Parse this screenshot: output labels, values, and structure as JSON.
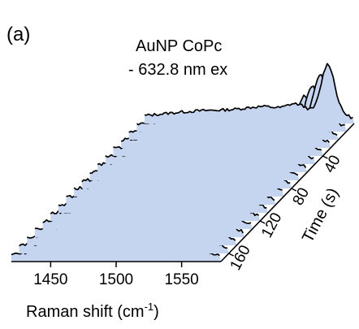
{
  "chart_data": {
    "type": "area",
    "panel_label": "(a)",
    "title_line1": "AuNP  CoPc",
    "title_line2": "- 632.8 nm ex",
    "xlabel": "Raman shift (cm",
    "xlabel_sup": "-1",
    "xlabel_close": ")",
    "ylabel": "Time (s)",
    "xlim": [
      1420,
      1580
    ],
    "xticks": [
      1450,
      1500,
      1550
    ],
    "xtick_labels": [
      "1450",
      "1500",
      "1550"
    ],
    "time_ticks": [
      40,
      80,
      120,
      160
    ],
    "time_tick_labels": [
      "40",
      "80",
      "120",
      "160"
    ],
    "time_range": [
      0,
      170
    ],
    "fill_color": "#c6d5ef",
    "line_color": "#000000",
    "series": [
      {
        "time": 0,
        "peak_intensity": 1.0
      },
      {
        "time": 10,
        "peak_intensity": 0.95
      },
      {
        "time": 20,
        "peak_intensity": 0.9
      },
      {
        "time": 30,
        "peak_intensity": 0.86
      },
      {
        "time": 40,
        "peak_intensity": 0.82
      },
      {
        "time": 50,
        "peak_intensity": 0.78
      },
      {
        "time": 60,
        "peak_intensity": 0.74
      },
      {
        "time": 70,
        "peak_intensity": 0.7
      },
      {
        "time": 80,
        "peak_intensity": 0.66
      },
      {
        "time": 90,
        "peak_intensity": 0.62
      },
      {
        "time": 100,
        "peak_intensity": 0.58
      },
      {
        "time": 110,
        "peak_intensity": 0.54
      },
      {
        "time": 120,
        "peak_intensity": 0.5
      },
      {
        "time": 130,
        "peak_intensity": 0.46
      },
      {
        "time": 140,
        "peak_intensity": 0.42
      },
      {
        "time": 150,
        "peak_intensity": 0.38
      },
      {
        "time": 160,
        "peak_intensity": 0.34
      },
      {
        "time": 170,
        "peak_intensity": 0.3
      }
    ]
  }
}
